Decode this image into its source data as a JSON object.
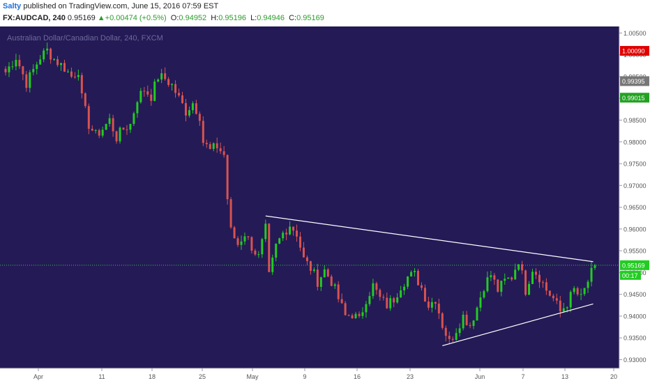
{
  "header": {
    "user": "Salty",
    "published": "published on TradingView.com, June 15, 2016 07:59 EST",
    "symbol": "FX:AUDCAD, 240",
    "last": "0.95169",
    "change": "+0.00474 (+0.5%)",
    "o_label": "O:",
    "o_value": "0.94952",
    "h_label": "H:",
    "h_value": "0.95196",
    "l_label": "L:",
    "l_value": "0.94946",
    "c_label": "C:",
    "c_value": "0.95169"
  },
  "colors": {
    "background": "#241a56",
    "up": "#22cc22",
    "down": "#d9534f",
    "trendline": "#ffffff",
    "price_line": "#2ecc40"
  },
  "chart_data": {
    "type": "candlestick",
    "title": "Australian Dollar/Canadian Dollar, 240, FXCM",
    "ylim": [
      0.928,
      1.0065
    ],
    "yticks": [
      "1.00500",
      "1.00000",
      "0.99500",
      "0.99000",
      "0.98500",
      "0.98000",
      "0.97500",
      "0.97000",
      "0.96500",
      "0.96000",
      "0.95500",
      "0.95000",
      "0.94500",
      "0.94000",
      "0.93500",
      "0.93000"
    ],
    "xticks": [
      "Apr",
      "11",
      "18",
      "25",
      "May",
      "9",
      "16",
      "23",
      "Jun",
      "7",
      "13",
      "20"
    ],
    "price_tags": [
      {
        "value": "1.00090",
        "y": 1.0009,
        "bg": "#e00000",
        "fg": "#ffffff"
      },
      {
        "value": "0.99395",
        "y": 0.99395,
        "bg": "#777777",
        "fg": "#ffffff"
      },
      {
        "value": "0.99015",
        "y": 0.99015,
        "bg": "#22a222",
        "fg": "#ffffff"
      },
      {
        "value": "0.95169",
        "y": 0.95169,
        "bg": "#22cc22",
        "fg": "#ffffff"
      }
    ],
    "countdown": "00:17",
    "last_price": 0.95169,
    "anchors": [
      [
        0,
        0.996
      ],
      [
        3,
        0.9995
      ],
      [
        6,
        0.9935
      ],
      [
        10,
        0.9995
      ],
      [
        12,
        1.001
      ],
      [
        14,
        0.999
      ],
      [
        17,
        0.997
      ],
      [
        19,
        0.995
      ],
      [
        21,
        0.9965
      ],
      [
        22,
        0.99
      ],
      [
        24,
        0.984
      ],
      [
        26,
        0.9815
      ],
      [
        28,
        0.983
      ],
      [
        30,
        0.985
      ],
      [
        32,
        0.981
      ],
      [
        34,
        0.983
      ],
      [
        36,
        0.984
      ],
      [
        38,
        0.99
      ],
      [
        40,
        0.992
      ],
      [
        42,
        0.9905
      ],
      [
        44,
        0.995
      ],
      [
        46,
        0.9945
      ],
      [
        48,
        0.993
      ],
      [
        50,
        0.99
      ],
      [
        52,
        0.987
      ],
      [
        54,
        0.989
      ],
      [
        56,
        0.986
      ],
      [
        57,
        0.98
      ],
      [
        59,
        0.978
      ],
      [
        61,
        0.979
      ],
      [
        63,
        0.977
      ],
      [
        64,
        0.967
      ],
      [
        65,
        0.9595
      ],
      [
        67,
        0.9565
      ],
      [
        69,
        0.959
      ],
      [
        71,
        0.956
      ],
      [
        73,
        0.9535
      ],
      [
        75,
        0.96
      ],
      [
        76,
        0.949
      ],
      [
        78,
        0.956
      ],
      [
        80,
        0.959
      ],
      [
        82,
        0.961
      ],
      [
        84,
        0.959
      ],
      [
        86,
        0.953
      ],
      [
        88,
        0.951
      ],
      [
        90,
        0.948
      ],
      [
        92,
        0.9505
      ],
      [
        94,
        0.948
      ],
      [
        96,
        0.944
      ],
      [
        98,
        0.94
      ],
      [
        100,
        0.9405
      ],
      [
        102,
        0.939
      ],
      [
        104,
        0.944
      ],
      [
        106,
        0.947
      ],
      [
        108,
        0.944
      ],
      [
        110,
        0.9425
      ],
      [
        112,
        0.944
      ],
      [
        114,
        0.947
      ],
      [
        116,
        0.949
      ],
      [
        118,
        0.9495
      ],
      [
        120,
        0.9465
      ],
      [
        122,
        0.9425
      ],
      [
        124,
        0.944
      ],
      [
        126,
        0.938
      ],
      [
        128,
        0.934
      ],
      [
        130,
        0.937
      ],
      [
        132,
        0.94
      ],
      [
        134,
        0.938
      ],
      [
        136,
        0.942
      ],
      [
        138,
        0.947
      ],
      [
        140,
        0.9495
      ],
      [
        142,
        0.946
      ],
      [
        144,
        0.948
      ],
      [
        146,
        0.949
      ],
      [
        148,
        0.953
      ],
      [
        150,
        0.946
      ],
      [
        152,
        0.951
      ],
      [
        154,
        0.949
      ],
      [
        156,
        0.946
      ],
      [
        158,
        0.944
      ],
      [
        160,
        0.941
      ],
      [
        162,
        0.943
      ],
      [
        164,
        0.946
      ],
      [
        166,
        0.944
      ],
      [
        168,
        0.948
      ],
      [
        170,
        0.9517
      ]
    ],
    "trendlines": [
      {
        "from": [
          0.963
        ],
        "fromx": 75,
        "to": [
          0.9525
        ],
        "tox": 169.5
      },
      {
        "from": [
          0.9332
        ],
        "fromx": 126,
        "to": [
          0.9428
        ],
        "tox": 169.5
      }
    ]
  }
}
